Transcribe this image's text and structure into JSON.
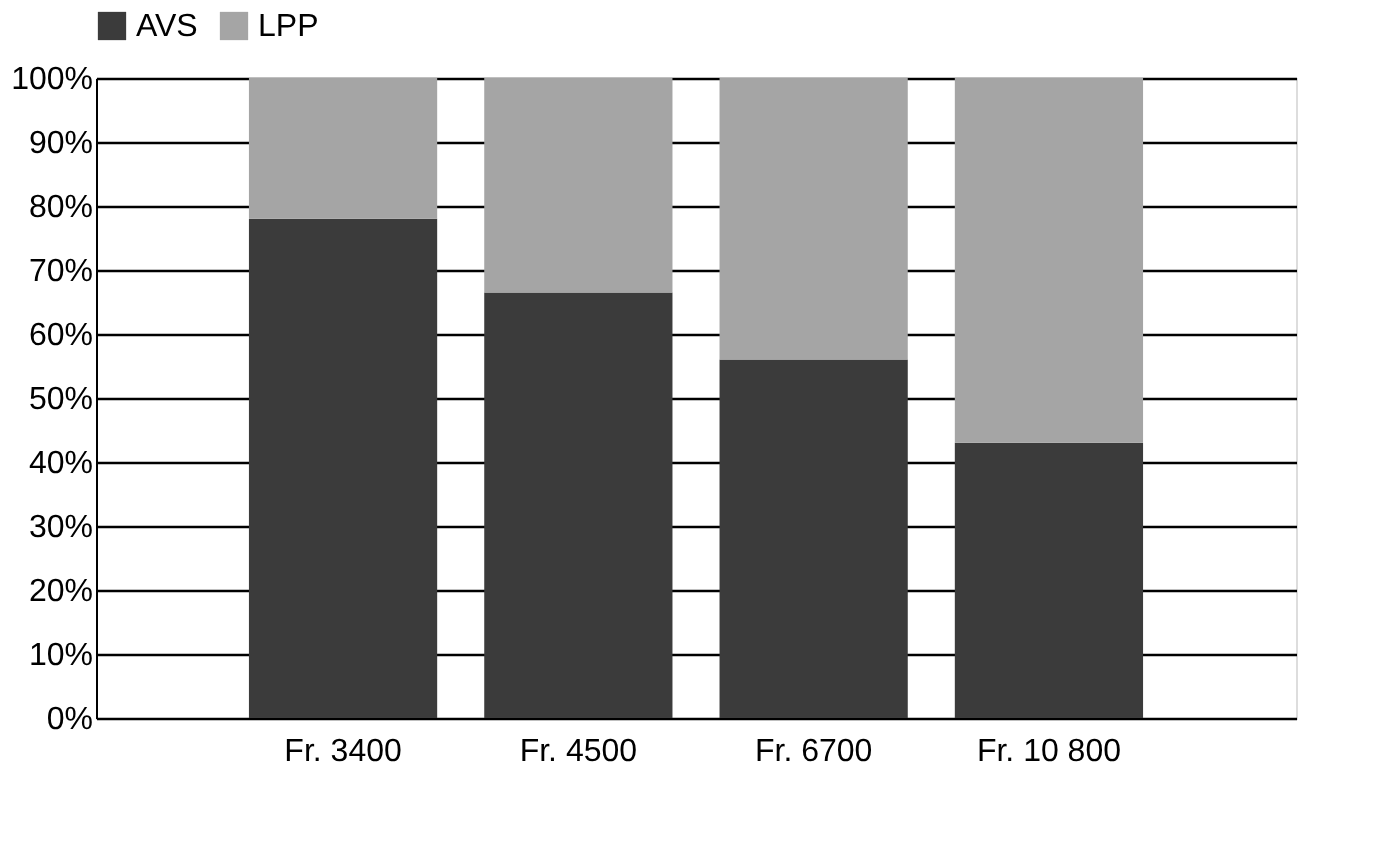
{
  "chart_data": {
    "type": "bar",
    "stacked": true,
    "categories": [
      "Fr. 3400",
      "Fr. 4500",
      "Fr. 6700",
      "Fr. 10 800"
    ],
    "series": [
      {
        "name": "AVS",
        "color": "#3b3b3b",
        "values": [
          78,
          66.5,
          56,
          43
        ]
      },
      {
        "name": "LPP",
        "color": "#a5a5a5",
        "values": [
          22,
          33.5,
          44,
          57
        ]
      }
    ],
    "ylim": [
      0,
      100
    ],
    "yticks": [
      {
        "value": 0,
        "label": "0%"
      },
      {
        "value": 10,
        "label": "10%"
      },
      {
        "value": 20,
        "label": "20%"
      },
      {
        "value": 30,
        "label": "30%"
      },
      {
        "value": 40,
        "label": "40%"
      },
      {
        "value": 50,
        "label": "50%"
      },
      {
        "value": 60,
        "label": "60%"
      },
      {
        "value": 70,
        "label": "70%"
      },
      {
        "value": 80,
        "label": "80%"
      },
      {
        "value": 90,
        "label": "90%"
      },
      {
        "value": 100,
        "label": "100%"
      }
    ],
    "grid": "y",
    "legend": "top"
  }
}
